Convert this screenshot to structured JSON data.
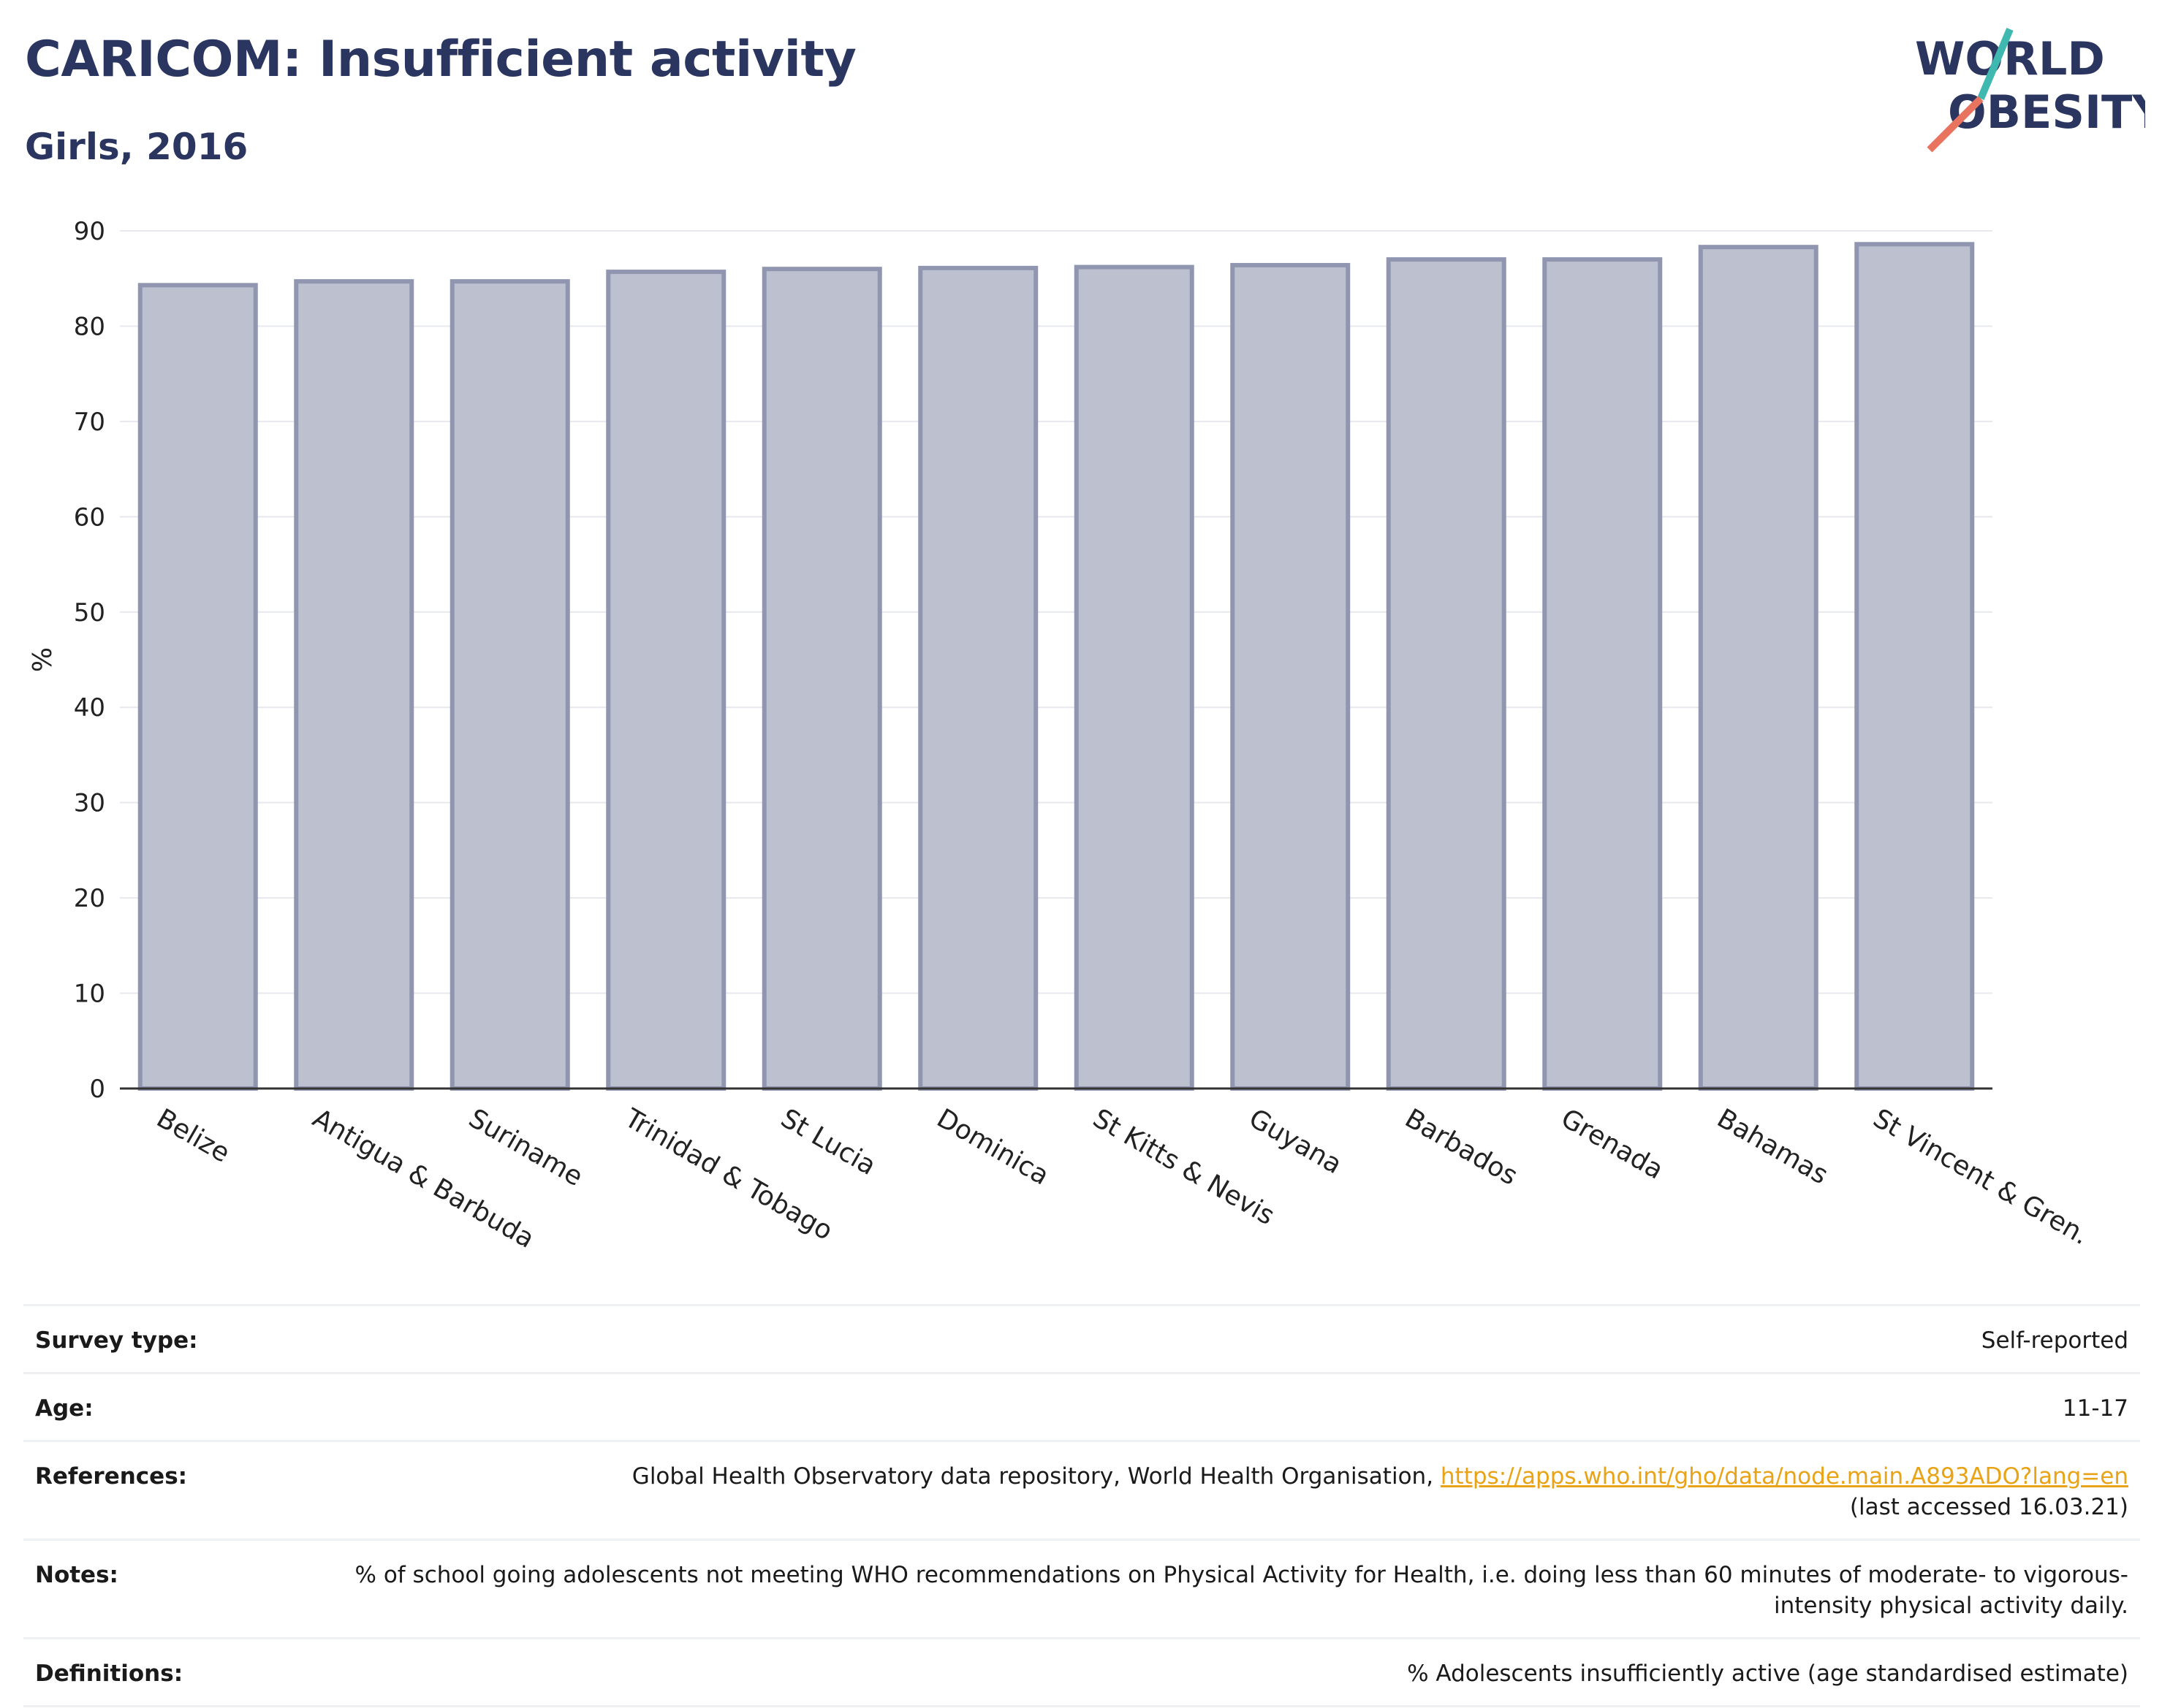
{
  "title": "CARICOM: Insufficient activity",
  "subtitle": "Girls, 2016",
  "logo": {
    "line1": "WORLD",
    "line2": "OBESITY"
  },
  "chart_data": {
    "type": "bar",
    "categories": [
      "Belize",
      "Antigua & Barbuda",
      "Suriname",
      "Trinidad & Tobago",
      "St Lucia",
      "Dominica",
      "St Kitts & Nevis",
      "Guyana",
      "Barbados",
      "Grenada",
      "Bahamas",
      "St Vincent & Gren."
    ],
    "values": [
      84.3,
      84.7,
      84.7,
      85.7,
      86.0,
      86.1,
      86.2,
      86.4,
      87.0,
      87.0,
      88.3,
      88.6
    ],
    "ylabel": "%",
    "xlabel": "",
    "ylim": [
      0,
      90
    ],
    "yticks": [
      0,
      10,
      20,
      30,
      40,
      50,
      60,
      70,
      80,
      90
    ],
    "grid": true,
    "bar_fill": "#bcc0cf",
    "bar_stroke": "#9096b0"
  },
  "meta": {
    "survey_type": {
      "label": "Survey type:",
      "value": "Self-reported"
    },
    "age": {
      "label": "Age:",
      "value": "11-17"
    },
    "references": {
      "label": "References:",
      "prefix": "Global Health Observatory data repository, World Health Organisation, ",
      "link": "https://apps.who.int/gho/data/node.main.A893ADO?lang=en",
      "suffix": "(last accessed 16.03.21)"
    },
    "notes": {
      "label": "Notes:",
      "value": "% of school going adolescents not meeting WHO recommendations on Physical Activity for Health, i.e. doing less than 60 minutes of moderate- to vigorous-intensity physical activity daily."
    },
    "definitions": {
      "label": "Definitions:",
      "value": "% Adolescents insufficiently active (age standardised estimate)"
    }
  },
  "colors": {
    "title": "#2a3560",
    "link": "#e8a317",
    "logo_teal": "#3fb8b0",
    "logo_coral": "#e8735f"
  }
}
